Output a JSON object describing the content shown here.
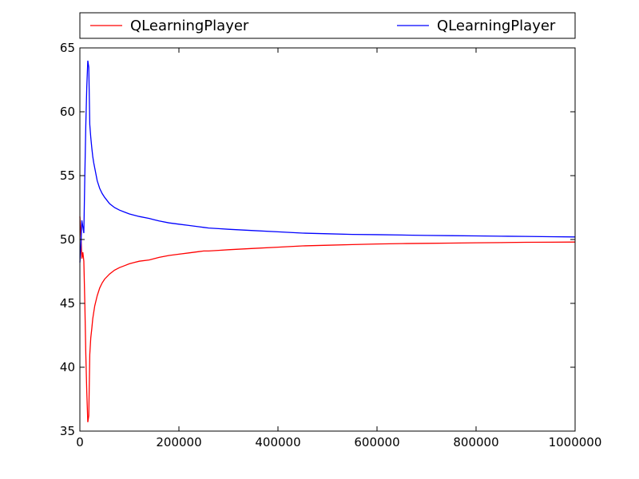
{
  "chart_data": {
    "type": "line",
    "title": "",
    "xlabel": "",
    "ylabel": "",
    "xlim": [
      0,
      1000000
    ],
    "ylim": [
      35,
      65
    ],
    "xticks": [
      0,
      200000,
      400000,
      600000,
      800000,
      1000000
    ],
    "xtick_labels": [
      "0",
      "200000",
      "400000",
      "600000",
      "800000",
      "1000000"
    ],
    "yticks": [
      35,
      40,
      45,
      50,
      55,
      60,
      65
    ],
    "ytick_labels": [
      "35",
      "40",
      "45",
      "50",
      "55",
      "60",
      "65"
    ],
    "grid": false,
    "legend": {
      "placement": "top",
      "columns": 2
    },
    "series": [
      {
        "name": "QLearningPlayer",
        "color": "#ff0000",
        "x": [
          0,
          2000,
          4000,
          6000,
          8000,
          10000,
          12000,
          14000,
          16000,
          18000,
          20000,
          22000,
          24000,
          26000,
          28000,
          30000,
          35000,
          40000,
          45000,
          50000,
          60000,
          70000,
          80000,
          90000,
          100000,
          110000,
          120000,
          140000,
          150000,
          160000,
          180000,
          200000,
          220000,
          240000,
          250000,
          260000,
          280000,
          300000,
          350000,
          400000,
          450000,
          500000,
          550000,
          600000,
          650000,
          700000,
          750000,
          800000,
          850000,
          900000,
          950000,
          1000000
        ],
        "y": [
          51.8,
          50.5,
          48.5,
          49.0,
          48.3,
          45.0,
          41.0,
          38.0,
          35.7,
          36.2,
          41.0,
          42.3,
          43.0,
          43.8,
          44.3,
          44.8,
          45.6,
          46.2,
          46.6,
          46.9,
          47.3,
          47.6,
          47.8,
          47.95,
          48.1,
          48.2,
          48.3,
          48.4,
          48.5,
          48.6,
          48.75,
          48.85,
          48.95,
          49.05,
          49.1,
          49.1,
          49.15,
          49.2,
          49.3,
          49.4,
          49.5,
          49.55,
          49.6,
          49.65,
          49.68,
          49.7,
          49.72,
          49.74,
          49.76,
          49.78,
          49.79,
          49.8
        ]
      },
      {
        "name": "QLearningPlayer",
        "color": "#0000ff",
        "x": [
          0,
          2000,
          4000,
          6000,
          8000,
          10000,
          12000,
          14000,
          16000,
          18000,
          20000,
          22000,
          24000,
          26000,
          28000,
          30000,
          35000,
          40000,
          45000,
          50000,
          60000,
          70000,
          80000,
          90000,
          100000,
          110000,
          120000,
          140000,
          150000,
          160000,
          180000,
          200000,
          220000,
          240000,
          250000,
          260000,
          280000,
          300000,
          350000,
          400000,
          450000,
          500000,
          550000,
          600000,
          650000,
          700000,
          750000,
          800000,
          850000,
          900000,
          950000,
          1000000
        ],
        "y": [
          48.2,
          49.5,
          51.5,
          51.0,
          50.5,
          55.0,
          59.0,
          62.0,
          64.0,
          63.5,
          59.0,
          58.0,
          57.2,
          56.5,
          56.0,
          55.6,
          54.6,
          54.0,
          53.6,
          53.3,
          52.8,
          52.5,
          52.3,
          52.15,
          52.0,
          51.9,
          51.8,
          51.65,
          51.55,
          51.45,
          51.3,
          51.2,
          51.1,
          51.0,
          50.95,
          50.9,
          50.85,
          50.8,
          50.7,
          50.6,
          50.5,
          50.45,
          50.4,
          50.38,
          50.35,
          50.32,
          50.3,
          50.28,
          50.26,
          50.24,
          50.22,
          50.2
        ]
      }
    ]
  }
}
